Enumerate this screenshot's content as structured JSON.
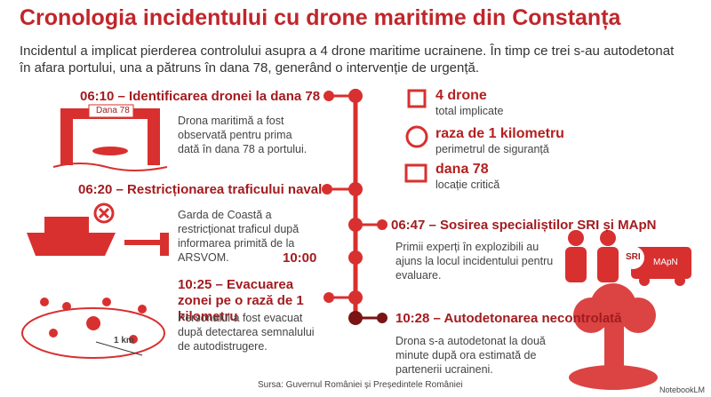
{
  "header": {
    "title": "Cronologia incidentului cu drone maritime din Constanța",
    "intro": "Incidentul a implicat pierderea controlului asupra a 4 drone maritime ucrainene. În timp ce trei s-au autodetonat în afara portului, una a pătruns în dana 78, generând o intervenție de urgență."
  },
  "events": [
    {
      "heading": "06:10 – Identificarea dronei la dana 78",
      "text": "Drona maritimă a fost observată pentru prima dată în dana 78 a portului."
    },
    {
      "heading": "06:20 – Restricționarea traficului naval",
      "text": "Garda de Coastă a restricționat traficul după informarea primită de la ARSVOM."
    },
    {
      "heading": "06:47 – Sosirea specialiștilor SRI și MApN",
      "text": "Primii experți în explozibili au ajuns la locul incidentului pentru evaluare."
    },
    {
      "heading": "10:00"
    },
    {
      "heading": "10:25 – Evacuarea zonei pe o rază de 1 kilometru",
      "text": "Personalul a fost evacuat după detectarea semnalului de autodistrugere."
    },
    {
      "heading": "10:28 – Autodetonarea necontrolată",
      "text": "Drona s-a autodetonat la două minute după ora estimată de partenerii ucraineni."
    }
  ],
  "stats": [
    {
      "value": "4 drone",
      "label": "total implicate"
    },
    {
      "value": "raza de 1 kilometru",
      "label": "perimetrul de siguranță"
    },
    {
      "value": "dana 78",
      "label": "locație critică"
    }
  ],
  "illustrations": {
    "dock": "Dana 78",
    "sri": "SRI",
    "mapn": "MApN",
    "radius": "1 km"
  },
  "footer": {
    "source": "Sursa: Guvernul României și Președintele României",
    "watermark": "NotebookLM"
  }
}
